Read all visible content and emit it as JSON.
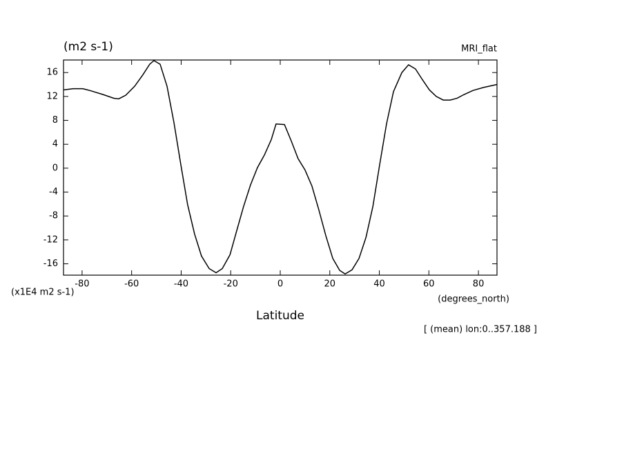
{
  "chart_data": {
    "type": "line",
    "title": "MRI_flat",
    "unit_label": "(m2 s-1)",
    "scale_label": "(x1E4 m2 s-1)",
    "x_unit_label": "(degrees_north)",
    "xlabel": "Latitude",
    "footnote": "[ (mean) lon:0..357.188 ]",
    "color": "#000000",
    "x": [
      -87.5,
      -83.6,
      -79.7,
      -76.9,
      -71.4,
      -67.2,
      -65.2,
      -62.4,
      -58.8,
      -55.5,
      -52.7,
      -51.0,
      -48.5,
      -45.7,
      -42.9,
      -40.1,
      -37.4,
      -34.6,
      -31.8,
      -28.7,
      -25.9,
      -23.4,
      -20.3,
      -17.6,
      -14.8,
      -12.0,
      -9.2,
      -6.4,
      -3.6,
      -1.7,
      1.7,
      4.5,
      7.2,
      10.0,
      12.8,
      15.6,
      18.4,
      21.2,
      24.0,
      26.2,
      29.0,
      31.8,
      34.6,
      37.4,
      40.1,
      42.9,
      45.7,
      49.1,
      51.8,
      54.6,
      57.4,
      60.2,
      63.0,
      65.8,
      68.6,
      71.4,
      74.1,
      77.8,
      82.0,
      87.5
    ],
    "values": [
      13.1,
      13.3,
      13.3,
      13.0,
      12.3,
      11.7,
      11.6,
      12.2,
      13.7,
      15.6,
      17.4,
      18.0,
      17.4,
      13.7,
      7.6,
      0.5,
      -6.1,
      -11.0,
      -14.7,
      -16.8,
      -17.5,
      -16.8,
      -14.5,
      -10.5,
      -6.4,
      -2.8,
      0.1,
      2.2,
      4.8,
      7.4,
      7.3,
      4.5,
      1.6,
      -0.3,
      -3.0,
      -7.0,
      -11.3,
      -15.1,
      -17.1,
      -17.7,
      -17.0,
      -15.1,
      -11.6,
      -6.4,
      0.5,
      7.4,
      12.8,
      16.0,
      17.3,
      16.6,
      14.8,
      13.1,
      12.0,
      11.4,
      11.4,
      11.7,
      12.3,
      13.0,
      13.5,
      14.0
    ],
    "xlim": [
      -87.5,
      87.5
    ],
    "ylim": [
      -17.9,
      18.1
    ],
    "xticks": [
      -80,
      -60,
      -40,
      -20,
      0,
      20,
      40,
      60,
      80
    ],
    "yticks": [
      -16,
      -12,
      -8,
      -4,
      0,
      4,
      8,
      12,
      16
    ]
  }
}
